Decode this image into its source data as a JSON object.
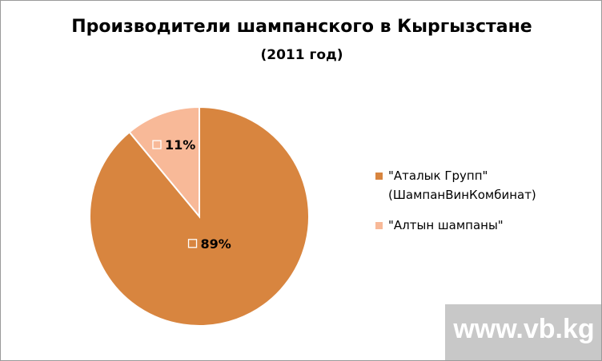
{
  "chart_data": {
    "type": "pie",
    "title": "Производители шампанского в Кыргызстане",
    "subtitle": "(2011 год)",
    "categories": [
      "\"Аталык Групп\" (ШампанВинКомбинат)",
      "\"Алтын шампаны\""
    ],
    "values": [
      89,
      11
    ],
    "data_labels": [
      "89%",
      "11%"
    ],
    "colors": [
      "#D8853F",
      "#F8B998"
    ],
    "legend": {
      "placement": "right",
      "entries": [
        "\"Аталык Групп\"\n(ШампанВинКомбинат)",
        "\"Алтын шампаны\""
      ]
    }
  },
  "watermark": {
    "text": "www.vb.kg",
    "color": "#c8c8c8"
  }
}
